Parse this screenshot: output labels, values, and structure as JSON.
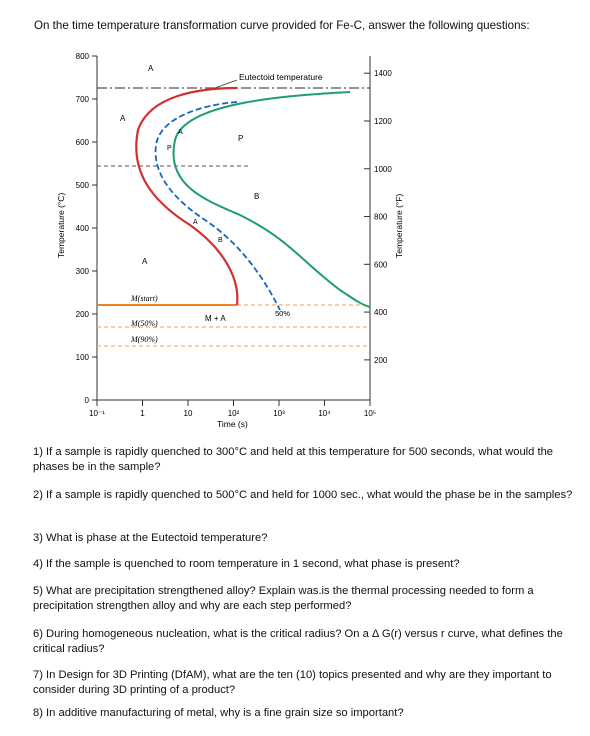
{
  "intro": "On the time temperature transformation curve provided for Fe-C, answer the following questions:",
  "chart_data": {
    "type": "line",
    "title": "",
    "xlabel": "Time (s)",
    "ylabel": "Temperature (°C)",
    "ylabel_right": "Temperature (°F)",
    "x_scale": "log",
    "xlim": [
      0.1,
      100000
    ],
    "ylim": [
      0,
      800
    ],
    "x_ticks": [
      "10⁻¹",
      "1",
      "10",
      "10²",
      "10³",
      "10⁴",
      "10⁵"
    ],
    "y_ticks": [
      "0",
      "100",
      "200",
      "300",
      "400",
      "500",
      "600",
      "700",
      "800"
    ],
    "y_ticks_right": [
      "200",
      "400",
      "600",
      "800",
      "1000",
      "1200",
      "1400"
    ],
    "annotations": {
      "eutectoid": "Eutectoid temperature",
      "m_start": "M(start)",
      "m50": "M(50%)",
      "m90": "M(90%)",
      "ma": "M + A",
      "pct50": "50%",
      "A1": "A",
      "A2": "A",
      "A3": "A",
      "A4": "A",
      "A5": "A",
      "P1": "P",
      "P2": "P",
      "B1": "B",
      "B2": "B"
    },
    "eutectoid_temperature": 727,
    "martensite_start": 220,
    "martensite_50": 150,
    "martensite_90": 105,
    "series": [
      {
        "color": "#d32f2f",
        "x": [
          200,
          10,
          2,
          0.9,
          0.8,
          1,
          2,
          10,
          50,
          150,
          200
        ],
        "y": [
          727,
          700,
          660,
          600,
          550,
          500,
          450,
          400,
          330,
          260,
          220
        ]
      },
      {
        "color": "#1e9e6e",
        "x": [
          100000,
          3000,
          100,
          20,
          10,
          20,
          200,
          2000,
          20000,
          100000
        ],
        "y": [
          727,
          720,
          680,
          620,
          560,
          500,
          430,
          350,
          250,
          210
        ]
      },
      {
        "color": "#1565c0",
        "x": [
          1000,
          20,
          4,
          3,
          5,
          30,
          200,
          1000,
          2000
        ],
        "y": [
          727,
          700,
          640,
          580,
          500,
          420,
          330,
          250,
          210
        ]
      }
    ]
  },
  "questions": [
    "1) If a sample is rapidly quenched to 300°C and held at this temperature for 500 seconds, what would the phases be in the sample?",
    "2) If a sample is rapidly quenched to 500°C and held for 1000 sec., what would the phase be in the samples?",
    "3) What is phase at the Eutectoid temperature?",
    "4) If the sample is quenched to room temperature in 1 second, what phase is present?",
    "5) What are precipitation strengthened alloy? Explain was.is the thermal processing needed to form a precipitation strengthen alloy and why are each step performed?",
    "6) During homogeneous nucleation, what is the critical radius? On a Δ G(r) versus r curve, what defines the critical radius?",
    "7) In Design for 3D Printing (DfAM), what are the ten (10) topics presented and why are they important to consider during 3D printing of a product?",
    "8) In additive manufacturing of metal, why is a fine grain size so important?"
  ]
}
